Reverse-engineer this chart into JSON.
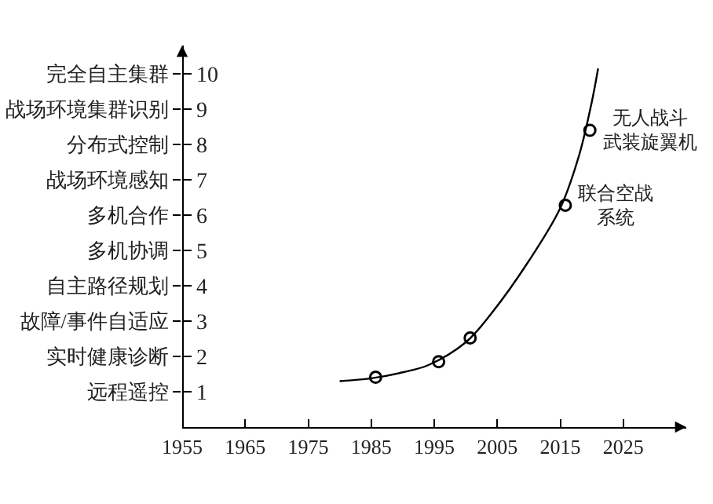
{
  "chart_data": {
    "type": "line",
    "series": [
      {
        "type": "line",
        "color": "#000000",
        "marker": "none",
        "x": [
          1980,
          1985,
          1990,
          1994,
          2000,
          2004,
          2010,
          2015,
          2018,
          2020,
          2021
        ],
        "values": [
          1.3,
          1.38,
          1.55,
          1.75,
          2.4,
          3.2,
          4.7,
          6.2,
          7.7,
          9.2,
          10.15
        ]
      },
      {
        "type": "scatter",
        "color": "#000000",
        "marker": "circle",
        "x": [
          1985.7,
          1995.7,
          2000.7,
          2015.8,
          2019.7
        ],
        "values": [
          1.41,
          1.85,
          2.52,
          6.28,
          8.4
        ]
      }
    ],
    "xlim": [
      1955,
      2035
    ],
    "xticks": [
      1955,
      1965,
      1975,
      1985,
      1995,
      2005,
      2015,
      2025
    ],
    "ylim": [
      0,
      10.8
    ],
    "yticks": [
      1,
      2,
      3,
      4,
      5,
      6,
      7,
      8,
      9,
      10
    ],
    "y2_categories": [
      "完全自主集群",
      "战场环境集群识别",
      "分布式控制",
      "战场环境感知",
      "多机合作",
      "多机协调",
      "自主路径规划",
      "故障/事件自适应",
      "实时健康诊断",
      "远程遥控"
    ],
    "annotations": [
      {
        "text": "联合空战系统",
        "x": 2015.8,
        "y": 6.28
      },
      {
        "text": "无人战斗武装旋翼机",
        "x": 2019.7,
        "y": 8.4
      }
    ],
    "grid": false
  }
}
